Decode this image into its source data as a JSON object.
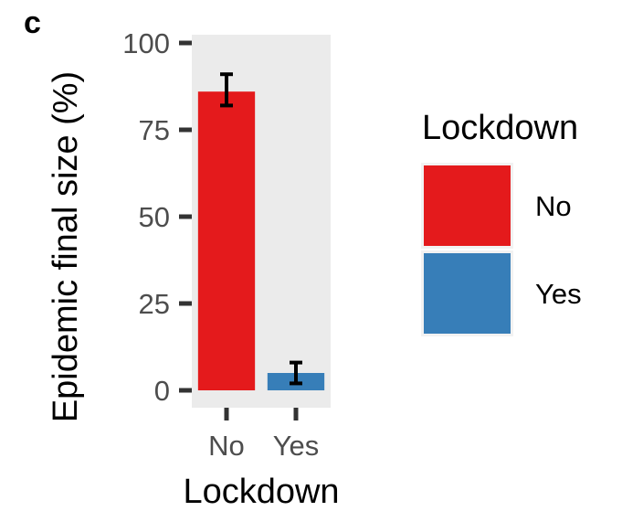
{
  "chart_data": {
    "type": "bar",
    "panel_label": "c",
    "categories": [
      "No",
      "Yes"
    ],
    "values": [
      86,
      5
    ],
    "error_bars": [
      {
        "low": 82,
        "high": 91
      },
      {
        "low": 2,
        "high": 8
      }
    ],
    "colors": [
      "#e41a1c",
      "#377eb8"
    ],
    "xlabel": "Lockdown",
    "ylabel": "Epidemic final size (%)",
    "ylim": [
      0,
      100
    ],
    "yticks": [
      "0",
      "25",
      "50",
      "75",
      "100"
    ],
    "ytick_values": [
      0,
      25,
      50,
      75,
      100
    ],
    "grid": false,
    "panel_background": "#ebebeb",
    "legend": {
      "title": "Lockdown",
      "position": "right",
      "items": [
        {
          "label": "No",
          "color": "#e41a1c"
        },
        {
          "label": "Yes",
          "color": "#377eb8"
        }
      ]
    }
  }
}
